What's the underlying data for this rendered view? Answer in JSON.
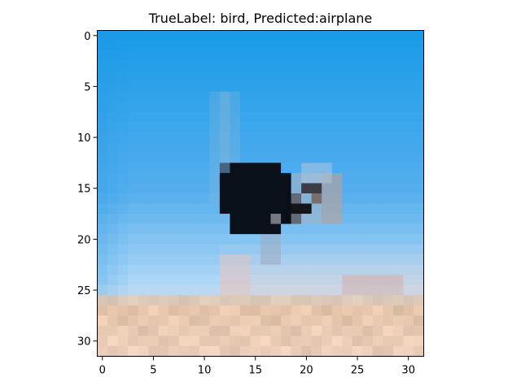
{
  "figure": {
    "title": "TrueLabel: bird, Predicted:airplane"
  },
  "axes": {
    "x_ticks": [
      "0",
      "5",
      "10",
      "15",
      "20",
      "25",
      "30"
    ],
    "y_ticks": [
      "0",
      "5",
      "10",
      "15",
      "20",
      "25",
      "30"
    ],
    "x_tick_values": [
      0,
      5,
      10,
      15,
      20,
      25,
      30
    ],
    "y_tick_values": [
      0,
      5,
      10,
      15,
      20,
      25,
      30
    ],
    "extent": [
      -0.5,
      31.5
    ]
  },
  "image": {
    "grid_size": 32,
    "description_colors": {
      "sky_top": "#1a9be8",
      "sky_bottom": "#bfe0f8",
      "sand": "#e6c6aa",
      "bird_dark": "#0a0f18"
    }
  }
}
